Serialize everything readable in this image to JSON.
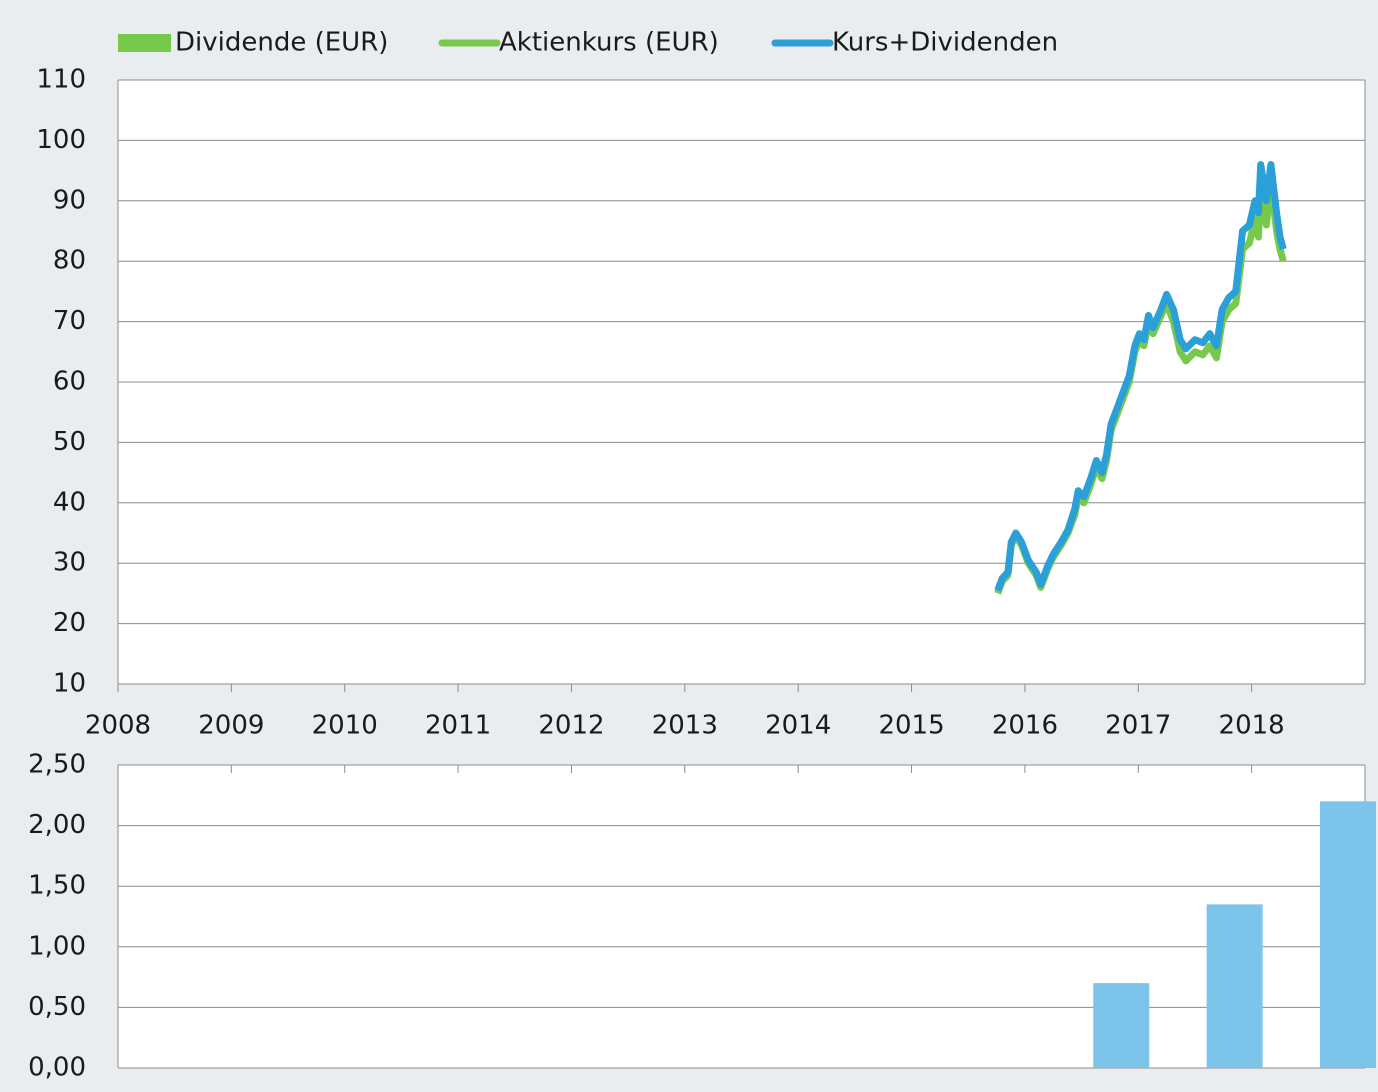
{
  "chart_data": [
    {
      "type": "line",
      "xlim": [
        2008,
        2019
      ],
      "xticks": [
        2008,
        2009,
        2010,
        2011,
        2012,
        2013,
        2014,
        2015,
        2016,
        2017,
        2018
      ],
      "ylim": [
        10,
        110
      ],
      "yticks": [
        10,
        20,
        30,
        40,
        50,
        60,
        70,
        80,
        90,
        100,
        110
      ],
      "grid": true,
      "x": [
        2015.76,
        2015.8,
        2015.85,
        2015.88,
        2015.92,
        2015.97,
        2016.03,
        2016.1,
        2016.14,
        2016.2,
        2016.25,
        2016.32,
        2016.38,
        2016.44,
        2016.47,
        2016.52,
        2016.58,
        2016.63,
        2016.68,
        2016.72,
        2016.76,
        2016.82,
        2016.88,
        2016.92,
        2016.97,
        2017.01,
        2017.05,
        2017.09,
        2017.13,
        2017.2,
        2017.25,
        2017.31,
        2017.37,
        2017.42,
        2017.5,
        2017.57,
        2017.63,
        2017.69,
        2017.74,
        2017.8,
        2017.86,
        2017.92,
        2017.98,
        2018.03,
        2018.06,
        2018.08,
        2018.13,
        2018.17,
        2018.22,
        2018.25,
        2018.28
      ],
      "series": [
        {
          "name": "Aktienkurs (EUR)",
          "color": "#77c94b",
          "values": [
            25,
            27,
            28,
            33,
            34.5,
            33,
            30,
            28,
            26,
            29,
            31,
            33,
            35,
            38,
            41,
            40,
            43,
            46,
            44,
            47,
            52,
            55,
            58,
            60,
            65,
            67,
            66,
            70,
            68,
            71,
            73,
            70,
            65,
            63.5,
            65,
            64.5,
            66,
            64,
            70,
            72,
            73,
            82,
            83,
            87,
            84,
            92,
            86,
            93,
            85,
            82,
            80
          ]
        },
        {
          "name": "Kurs+Dividenden",
          "color": "#2a9fd8",
          "values": [
            25.5,
            27.5,
            28.5,
            33.5,
            35,
            33.5,
            30.5,
            28.5,
            26.5,
            29.5,
            31.5,
            33.5,
            35.5,
            39,
            42,
            41,
            44,
            47,
            45,
            48,
            53,
            56,
            59,
            61,
            66,
            68,
            67,
            71,
            69,
            72,
            74.5,
            72,
            67,
            65.5,
            67,
            66.5,
            68,
            66,
            72,
            74,
            75,
            85,
            86,
            90,
            88,
            96,
            90,
            96,
            88,
            84,
            82
          ]
        }
      ]
    },
    {
      "type": "bar",
      "xlim": [
        2008,
        2019
      ],
      "xticks": [
        2008,
        2009,
        2010,
        2011,
        2012,
        2013,
        2014,
        2015,
        2016,
        2017,
        2018
      ],
      "ylim": [
        0,
        2.5
      ],
      "yticks": [
        {
          "value": 0,
          "label": "0,00"
        },
        {
          "value": 0.5,
          "label": "0,50"
        },
        {
          "value": 1,
          "label": "1,00"
        },
        {
          "value": 1.5,
          "label": "1,50"
        },
        {
          "value": 2,
          "label": "2,00"
        },
        {
          "value": 2.5,
          "label": "2,50"
        }
      ],
      "grid": true,
      "x": [
        2016.85,
        2017.85,
        2018.85
      ],
      "series": [
        {
          "name": "Dividende (EUR)",
          "color": "#7cc4ea",
          "legend_color": "#77c94b",
          "values": [
            0.7,
            1.35,
            2.2
          ]
        }
      ]
    }
  ]
}
